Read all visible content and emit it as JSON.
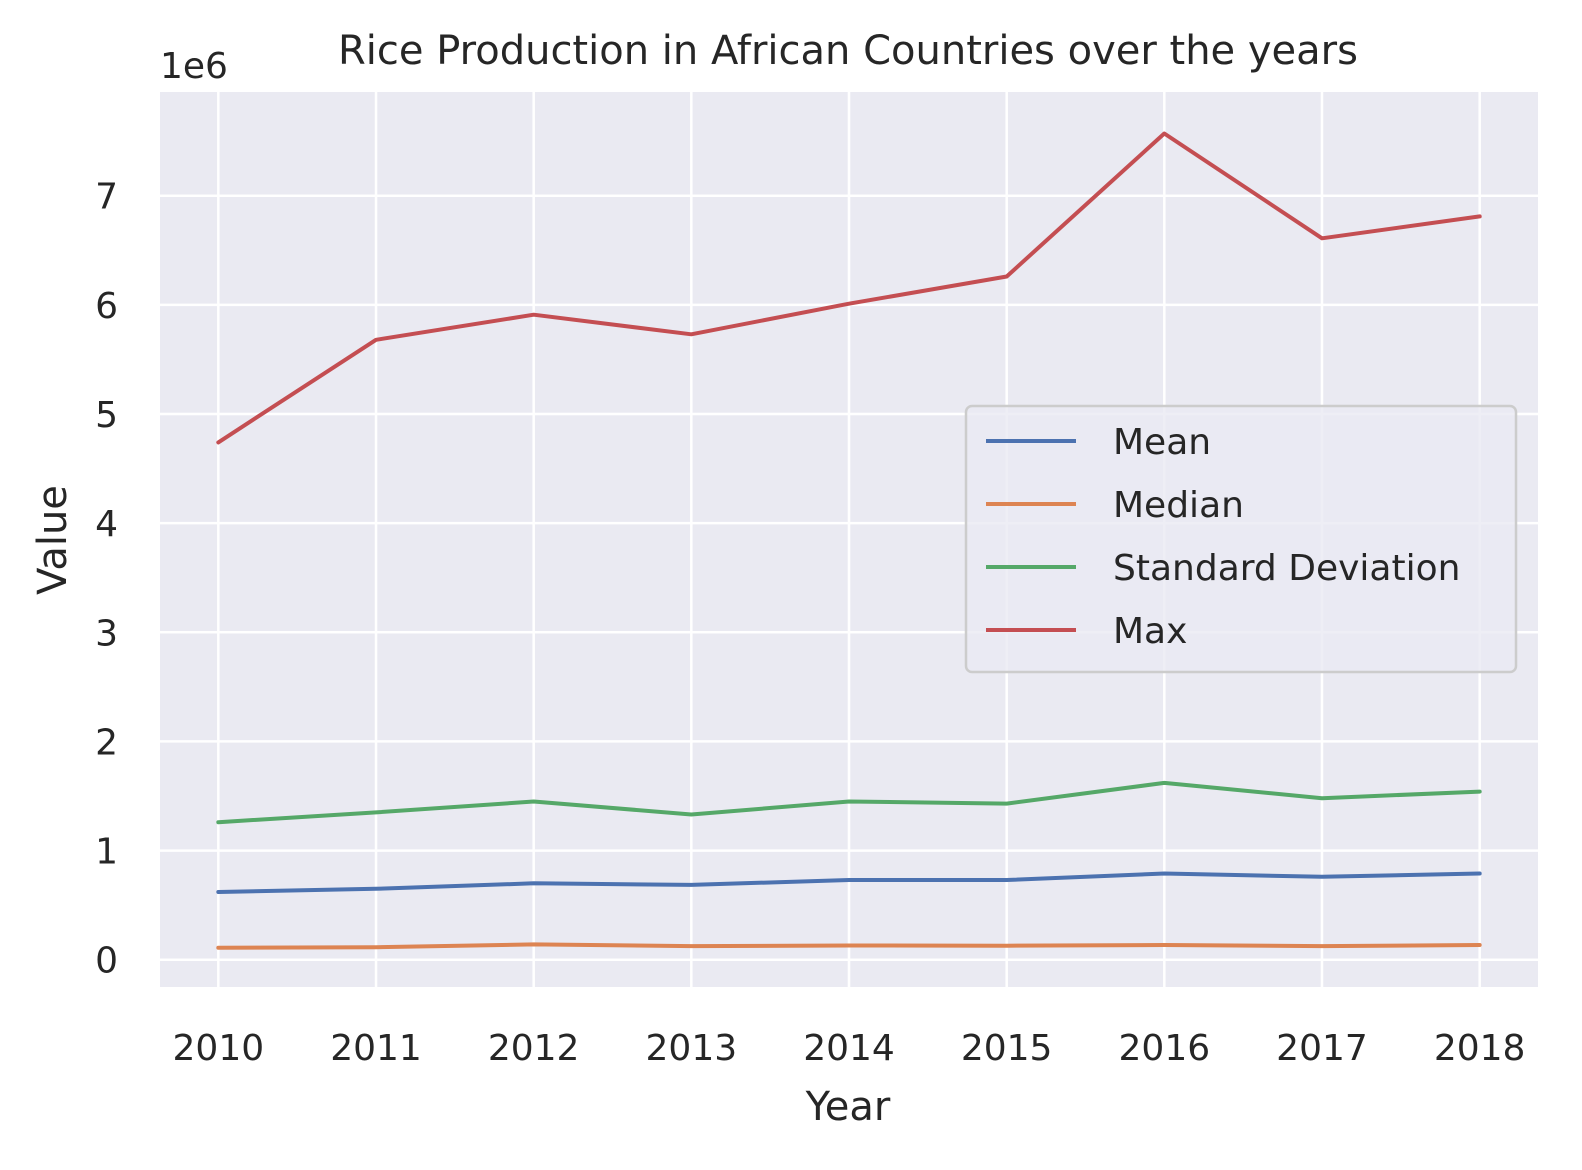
{
  "chart_data": {
    "type": "line",
    "title": "Rice Production in African Countries over the years",
    "xlabel": "Year",
    "ylabel": "Value",
    "y_offset_label": "1e6",
    "x": [
      2010,
      2011,
      2012,
      2013,
      2014,
      2015,
      2016,
      2017,
      2018
    ],
    "x_ticks": [
      "2010",
      "2011",
      "2012",
      "2013",
      "2014",
      "2015",
      "2016",
      "2017",
      "2018"
    ],
    "y_ticks": [
      "0",
      "1",
      "2",
      "3",
      "4",
      "5",
      "6",
      "7"
    ],
    "ylim": [
      -250000,
      7950000
    ],
    "xlim": [
      2009.63,
      2018.37
    ],
    "grid": true,
    "legend_position": "center-right",
    "series": [
      {
        "name": "Mean",
        "color": "#4c72b0",
        "values": [
          620000,
          650000,
          700000,
          685000,
          730000,
          730000,
          790000,
          760000,
          790000
        ]
      },
      {
        "name": "Median",
        "color": "#dd8452",
        "values": [
          110000,
          115000,
          140000,
          125000,
          130000,
          128000,
          135000,
          125000,
          135000
        ]
      },
      {
        "name": "Standard Deviation",
        "color": "#55a868",
        "values": [
          1260000,
          1350000,
          1450000,
          1330000,
          1450000,
          1430000,
          1620000,
          1480000,
          1540000
        ]
      },
      {
        "name": "Max",
        "color": "#c44e52",
        "values": [
          4740000,
          5680000,
          5910000,
          5730000,
          6010000,
          6260000,
          7570000,
          6610000,
          6810000
        ]
      }
    ]
  }
}
